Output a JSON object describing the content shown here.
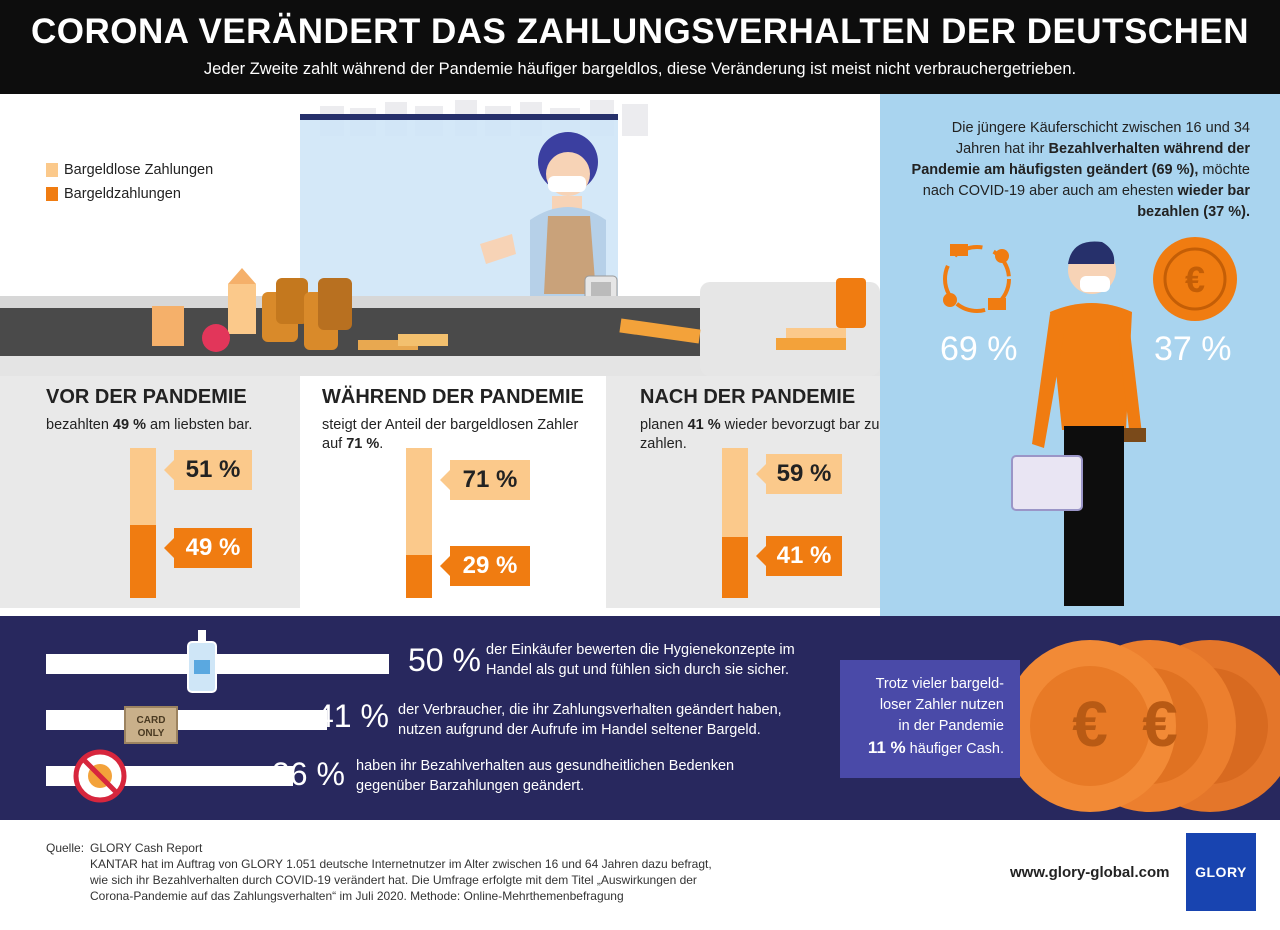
{
  "header": {
    "title": "CORONA VERÄNDERT DAS ZAHLUNGSVERHALTEN DER DEUTSCHEN",
    "subtitle": "Jeder Zweite zahlt während der Pandemie häufiger bargeldlos, diese Veränderung ist meist nicht verbrauchergetrieben."
  },
  "legend": {
    "items": [
      {
        "label": "Bargeldlose Zahlungen",
        "color": "#fbc98b"
      },
      {
        "label": "Bargeldzahlungen",
        "color": "#f07c11"
      }
    ]
  },
  "columns": [
    {
      "title": "VOR DER PANDEMIE",
      "desc_pre": "bezahlten ",
      "desc_bold": "49 %",
      "desc_post": " am liebsten bar.",
      "cashless": 51,
      "cashless_label": "51 %",
      "cash": 49,
      "cash_label": "49 %"
    },
    {
      "title": "WÄHREND DER PANDEMIE",
      "desc_pre": "steigt der Anteil der bargeldlosen Zahler auf ",
      "desc_bold": "71 %",
      "desc_post": ".",
      "cashless": 71,
      "cashless_label": "71 %",
      "cash": 29,
      "cash_label": "29 %"
    },
    {
      "title": "NACH DER PANDEMIE",
      "desc_pre": "planen ",
      "desc_bold": "41 %",
      "desc_post": " wieder bevorzugt bar zu zahlen.",
      "cashless": 59,
      "cashless_label": "59 %",
      "cash": 41,
      "cash_label": "41 %"
    }
  ],
  "right_panel": {
    "text_1": "Die jüngere Käuferschicht zwischen 16 und 34 Jahren hat ihr ",
    "text_bold_1": "Bezahlverhalten während der Pandemie am häufigsten geändert (69 %),",
    "text_2": " möchte nach COVID-19 aber auch am ehesten ",
    "text_bold_2": "wieder bar bezahlen (37 %).",
    "pct_left": "69 %",
    "pct_right": "37 %",
    "coin_symbol": "€"
  },
  "bottom_stats": [
    {
      "value": 50,
      "pct": "50 %",
      "text": "der Einkäufer bewerten die Hygienekonzepte im Handel als gut und fühlen sich durch sie sicher.",
      "icon": "sanitizer-icon"
    },
    {
      "value": 41,
      "pct": "41 %",
      "text": "der Verbraucher, die ihr Zahlungsverhalten geändert haben, nutzen aufgrund der Aufrufe im Handel seltener Bargeld.",
      "icon": "card-only-sign-icon",
      "sign_text": "CARD ONLY"
    },
    {
      "value": 36,
      "pct": "36 %",
      "text": "haben ihr Bezahlverhalten aus gesundheitlichen Bedenken gegenüber Barzahlungen geändert.",
      "icon": "no-virus-icon"
    }
  ],
  "callout": {
    "text_1": "Trotz vieler bargeld-",
    "text_2": "loser Zahler nutzen",
    "text_3": "in der Pandemie",
    "pct": "11 %",
    "text_4": " häufiger Cash."
  },
  "footer": {
    "source_label": "Quelle:",
    "source": "GLORY Cash Report",
    "note_1": "KANTAR hat im Auftrag von GLORY 1.051 deutsche Internetnutzer im Alter zwischen 16 und 64 Jahren dazu befragt,",
    "note_2": "wie sich ihr Bezahlverhalten durch COVID-19 verändert hat. Die Umfrage erfolgte mit dem Titel „Auswirkungen der",
    "note_3": "Corona-Pandemie auf das Zahlungsverhalten“ im Juli 2020. Methode: Online-Mehrthemenbefragung",
    "website": "www.glory-global.com",
    "logo": "GLORY"
  }
}
